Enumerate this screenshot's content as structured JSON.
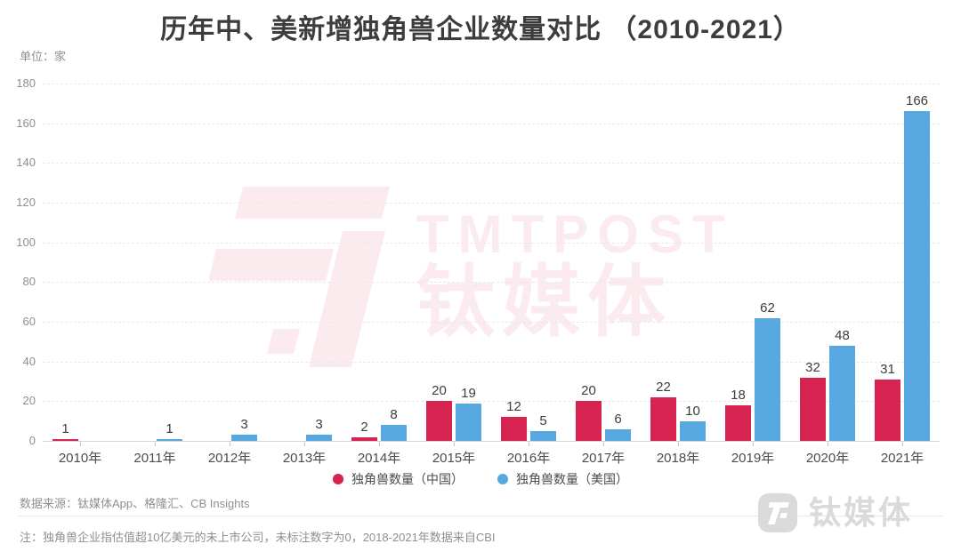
{
  "header": {
    "title": "历年中、美新增独角兽企业数量对比 （2010-2021）",
    "unit_label": "单位：家"
  },
  "chart_data": {
    "type": "bar",
    "categories": [
      "2010年",
      "2011年",
      "2012年",
      "2013年",
      "2014年",
      "2015年",
      "2016年",
      "2017年",
      "2018年",
      "2019年",
      "2020年",
      "2021年"
    ],
    "series": [
      {
        "name": "独角兽数量（中国）",
        "color": "#d6234f",
        "values": [
          1,
          0,
          0,
          0,
          2,
          20,
          12,
          20,
          22,
          18,
          32,
          31
        ]
      },
      {
        "name": "独角兽数量（美国）",
        "color": "#57a8e0",
        "values": [
          0,
          1,
          3,
          3,
          8,
          19,
          5,
          6,
          10,
          62,
          48,
          166
        ]
      }
    ],
    "title": "历年中、美新增独角兽企业数量对比 （2010-2021）",
    "xlabel": "",
    "ylabel": "单位：家",
    "ylim": [
      0,
      180
    ],
    "ytick_step": 20,
    "grid": "dashed-horizontal",
    "legend_position": "bottom",
    "zero_values_unlabeled": true
  },
  "watermark": {
    "brand_en": "TMTPOST",
    "brand_cn": "钛媒体"
  },
  "footer": {
    "source": "数据来源：钛媒体App、格隆汇、CB Insights",
    "note": "注：独角兽企业指估值超10亿美元的未上市公司，未标注数字为0，2018-2021年数据来自CBI",
    "logo_text": "钛媒体"
  }
}
